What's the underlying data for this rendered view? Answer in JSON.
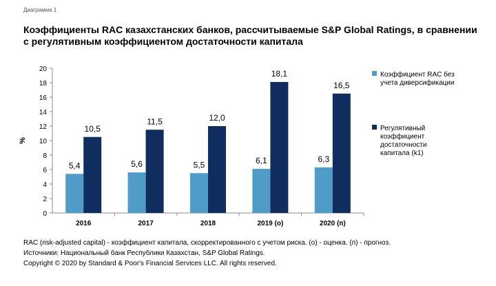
{
  "diagram_label": "Диаграмма 1",
  "title": "Коэффициенты RAC казахстанских банков, рассчитываемые S&P Global Ratings, в сравнении с регулятивным коэффициентом достаточности капитала",
  "notes": [
    "RAC (risk-adjusted capital) - коэффициент капитала, скорректированного с учетом риска. (о) - оценка. (п) - прогноз.",
    "Источники: Национальный банк Республики Казахстан, S&P Global Ratings.",
    "Copyright © 2020 by Standard & Poor's Financial Services LLC. All rights reserved."
  ],
  "chart_data": {
    "type": "bar",
    "categories": [
      "2016",
      "2017",
      "2018",
      "2019 (о)",
      "2020 (п)"
    ],
    "series": [
      {
        "name": "Коэффициент RAC без учета диверсификации",
        "legend_lines": [
          "Коэффициент RAC без",
          "учета диверсификации"
        ],
        "values": [
          5.4,
          5.6,
          5.5,
          6.1,
          6.3
        ],
        "labels": [
          "5,4",
          "5,6",
          "5,5",
          "6,1",
          "6,3"
        ],
        "color": "#4f9cc8"
      },
      {
        "name": "Регулятивный коэффициент достаточности капитала (k1)",
        "legend_lines": [
          "Регулятивный",
          "коэффициент",
          "достаточности",
          "капитала (k1)"
        ],
        "values": [
          10.5,
          11.5,
          12.0,
          18.1,
          16.5
        ],
        "labels": [
          "10,5",
          "11,5",
          "12,0",
          "18,1",
          "16,5"
        ],
        "color": "#0f2d5e"
      }
    ],
    "ylabel": "%",
    "ylim": [
      0,
      20
    ],
    "yticks": [
      0,
      2,
      4,
      6,
      8,
      10,
      12,
      14,
      16,
      18,
      20
    ],
    "grid": false,
    "legend": "right"
  }
}
